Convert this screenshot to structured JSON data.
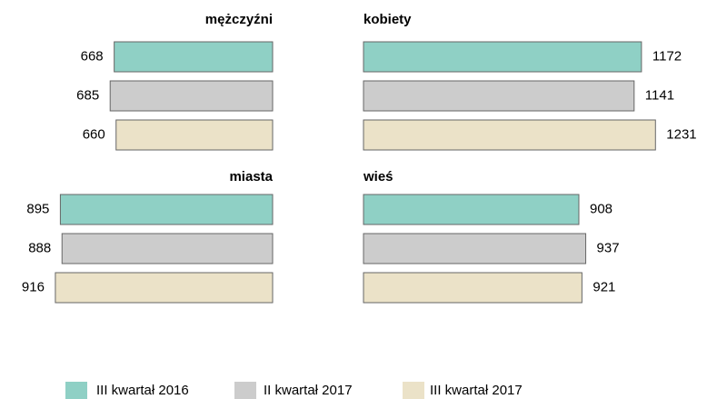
{
  "chart_data": [
    {
      "type": "bar",
      "direction": "left",
      "title": "mężczyźni",
      "values": [
        668,
        685,
        660
      ]
    },
    {
      "type": "bar",
      "direction": "right",
      "title": "kobiety",
      "values": [
        1172,
        1141,
        1231
      ]
    },
    {
      "type": "bar",
      "direction": "left",
      "title": "miasta",
      "values": [
        895,
        888,
        916
      ]
    },
    {
      "type": "bar",
      "direction": "right",
      "title": "wieś",
      "values": [
        908,
        937,
        921
      ]
    }
  ],
  "legend": [
    {
      "name": "III kwartał 2016",
      "color": "#8fd0c5"
    },
    {
      "name": "II kwartał 2017",
      "color": "#cccccc"
    },
    {
      "name": "III kwartał 2017",
      "color": "#ebe2c8"
    }
  ]
}
